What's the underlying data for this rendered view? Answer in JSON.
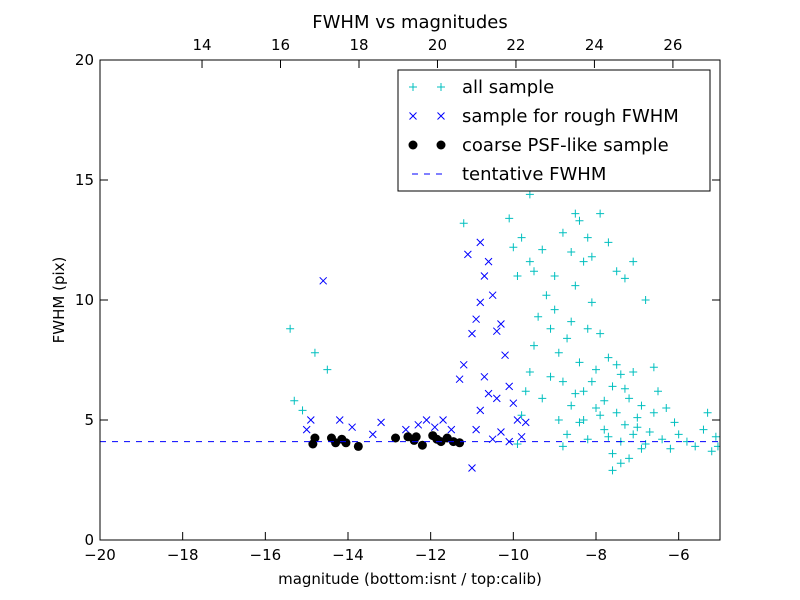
{
  "chart_data": {
    "type": "scatter",
    "title": "FWHM vs magnitudes",
    "xlabel": "magnitude (bottom:isnt / top:calib)",
    "ylabel": "FWHM (pix)",
    "xlim": [
      -20,
      -5
    ],
    "ylim": [
      0,
      20
    ],
    "x_ticks": [
      -20,
      -18,
      -16,
      -14,
      -12,
      -10,
      -8,
      -6
    ],
    "x_tick_labels": [
      "−20",
      "−18",
      "−16",
      "−14",
      "−12",
      "−10",
      "−8",
      "−6"
    ],
    "y_ticks": [
      0,
      5,
      10,
      15,
      20
    ],
    "y_tick_labels": [
      "0",
      "5",
      "10",
      "15",
      "20"
    ],
    "top_axis": {
      "xlim": [
        11.4,
        27.2
      ],
      "ticks": [
        14,
        16,
        18,
        20,
        22,
        24,
        26
      ],
      "tick_labels": [
        "14",
        "16",
        "18",
        "20",
        "22",
        "24",
        "26"
      ]
    },
    "grid": false,
    "legend_position": "top-right",
    "series": [
      {
        "name": "all sample",
        "marker": "plus",
        "color": "#00bfbf",
        "points": [
          [
            -15.4,
            8.8
          ],
          [
            -15.3,
            5.8
          ],
          [
            -15.1,
            5.4
          ],
          [
            -14.8,
            7.8
          ],
          [
            -14.5,
            7.1
          ],
          [
            -11.2,
            13.2
          ],
          [
            -10.1,
            13.4
          ],
          [
            -10.0,
            12.2
          ],
          [
            -9.8,
            12.6
          ],
          [
            -9.6,
            11.6
          ],
          [
            -9.5,
            11.2
          ],
          [
            -9.9,
            11.0
          ],
          [
            -9.6,
            14.4
          ],
          [
            -9.3,
            12.1
          ],
          [
            -9.0,
            11.0
          ],
          [
            -8.8,
            12.8
          ],
          [
            -8.6,
            12.0
          ],
          [
            -8.5,
            13.6
          ],
          [
            -8.4,
            13.3
          ],
          [
            -8.3,
            11.6
          ],
          [
            -8.2,
            12.6
          ],
          [
            -8.1,
            11.8
          ],
          [
            -7.9,
            13.6
          ],
          [
            -7.7,
            12.4
          ],
          [
            -7.5,
            11.2
          ],
          [
            -7.3,
            10.9
          ],
          [
            -7.1,
            11.6
          ],
          [
            -6.8,
            10.0
          ],
          [
            -6.6,
            7.2
          ],
          [
            -6.5,
            6.2
          ],
          [
            -6.3,
            5.5
          ],
          [
            -6.1,
            4.9
          ],
          [
            -6.0,
            4.4
          ],
          [
            -5.8,
            4.1
          ],
          [
            -5.6,
            3.9
          ],
          [
            -5.4,
            4.6
          ],
          [
            -5.3,
            5.3
          ],
          [
            -5.1,
            4.3
          ],
          [
            -5.05,
            3.9
          ],
          [
            -5.2,
            3.7
          ],
          [
            -9.9,
            4.0
          ],
          [
            -9.8,
            5.2
          ],
          [
            -9.7,
            6.2
          ],
          [
            -9.6,
            7.0
          ],
          [
            -9.5,
            8.1
          ],
          [
            -9.4,
            9.3
          ],
          [
            -9.2,
            10.2
          ],
          [
            -9.1,
            8.8
          ],
          [
            -9.0,
            9.6
          ],
          [
            -8.9,
            7.8
          ],
          [
            -8.8,
            6.6
          ],
          [
            -8.7,
            8.4
          ],
          [
            -8.6,
            9.1
          ],
          [
            -8.5,
            10.6
          ],
          [
            -8.4,
            7.4
          ],
          [
            -8.3,
            6.2
          ],
          [
            -8.2,
            8.8
          ],
          [
            -8.1,
            9.9
          ],
          [
            -8.0,
            7.1
          ],
          [
            -7.9,
            8.6
          ],
          [
            -7.8,
            5.8
          ],
          [
            -7.7,
            7.6
          ],
          [
            -7.6,
            6.4
          ],
          [
            -7.5,
            5.3
          ],
          [
            -7.4,
            6.9
          ],
          [
            -7.3,
            4.8
          ],
          [
            -7.2,
            5.9
          ],
          [
            -7.1,
            4.4
          ],
          [
            -7.0,
            5.1
          ],
          [
            -6.9,
            3.8
          ],
          [
            -8.6,
            5.6
          ],
          [
            -8.4,
            4.9
          ],
          [
            -8.2,
            4.2
          ],
          [
            -8.0,
            5.5
          ],
          [
            -7.8,
            4.6
          ],
          [
            -7.6,
            3.6
          ],
          [
            -7.4,
            4.1
          ],
          [
            -7.2,
            3.4
          ],
          [
            -7.0,
            4.7
          ],
          [
            -6.8,
            4.0
          ],
          [
            -9.3,
            5.9
          ],
          [
            -9.1,
            6.8
          ],
          [
            -8.9,
            5.0
          ],
          [
            -8.7,
            4.4
          ],
          [
            -8.5,
            6.1
          ],
          [
            -8.3,
            5.0
          ],
          [
            -8.1,
            6.6
          ],
          [
            -7.9,
            5.2
          ],
          [
            -7.7,
            4.3
          ],
          [
            -7.5,
            7.3
          ],
          [
            -7.3,
            6.3
          ],
          [
            -7.1,
            7.0
          ],
          [
            -6.9,
            5.6
          ],
          [
            -6.7,
            4.5
          ],
          [
            -6.6,
            5.3
          ],
          [
            -6.4,
            4.2
          ],
          [
            -6.2,
            3.8
          ],
          [
            -7.6,
            2.9
          ],
          [
            -7.4,
            3.2
          ],
          [
            -8.8,
            3.9
          ]
        ]
      },
      {
        "name": "sample for rough FWHM",
        "marker": "x",
        "color": "#0000ff",
        "points": [
          [
            -14.6,
            10.8
          ],
          [
            -15.0,
            4.6
          ],
          [
            -14.9,
            5.0
          ],
          [
            -14.2,
            5.0
          ],
          [
            -13.9,
            4.7
          ],
          [
            -13.4,
            4.4
          ],
          [
            -13.2,
            4.9
          ],
          [
            -12.6,
            4.6
          ],
          [
            -12.3,
            4.8
          ],
          [
            -12.1,
            5.0
          ],
          [
            -11.9,
            4.7
          ],
          [
            -11.7,
            5.0
          ],
          [
            -11.5,
            4.6
          ],
          [
            -11.0,
            3.0
          ],
          [
            -11.3,
            6.7
          ],
          [
            -11.2,
            7.3
          ],
          [
            -11.0,
            8.6
          ],
          [
            -10.9,
            9.2
          ],
          [
            -10.8,
            9.9
          ],
          [
            -10.7,
            11.0
          ],
          [
            -10.6,
            11.6
          ],
          [
            -10.5,
            10.2
          ],
          [
            -10.4,
            8.7
          ],
          [
            -10.3,
            9.0
          ],
          [
            -10.2,
            7.7
          ],
          [
            -10.1,
            6.4
          ],
          [
            -10.0,
            5.7
          ],
          [
            -9.9,
            5.0
          ],
          [
            -9.8,
            4.3
          ],
          [
            -10.6,
            6.1
          ],
          [
            -10.8,
            5.4
          ],
          [
            -10.9,
            4.6
          ],
          [
            -10.5,
            4.2
          ],
          [
            -10.3,
            4.5
          ],
          [
            -10.1,
            4.1
          ],
          [
            -9.7,
            4.9
          ],
          [
            -11.1,
            11.9
          ],
          [
            -10.8,
            12.4
          ],
          [
            -10.7,
            6.8
          ],
          [
            -10.4,
            5.9
          ]
        ]
      },
      {
        "name": "coarse PSF-like sample",
        "marker": "circle",
        "color": "#000000",
        "points": [
          [
            -14.8,
            4.25
          ],
          [
            -14.85,
            4.0
          ],
          [
            -14.4,
            4.25
          ],
          [
            -14.3,
            4.05
          ],
          [
            -14.15,
            4.2
          ],
          [
            -14.05,
            4.05
          ],
          [
            -13.75,
            3.9
          ],
          [
            -12.85,
            4.25
          ],
          [
            -12.55,
            4.3
          ],
          [
            -12.4,
            4.15
          ],
          [
            -12.2,
            3.95
          ],
          [
            -11.95,
            4.35
          ],
          [
            -11.85,
            4.2
          ],
          [
            -11.75,
            4.1
          ],
          [
            -11.6,
            4.25
          ],
          [
            -11.45,
            4.1
          ],
          [
            -11.3,
            4.05
          ],
          [
            -12.35,
            4.3
          ]
        ]
      },
      {
        "name": "tentative FWHM",
        "marker": "dashed-line",
        "color": "#0000ff",
        "y": 4.1
      }
    ]
  }
}
